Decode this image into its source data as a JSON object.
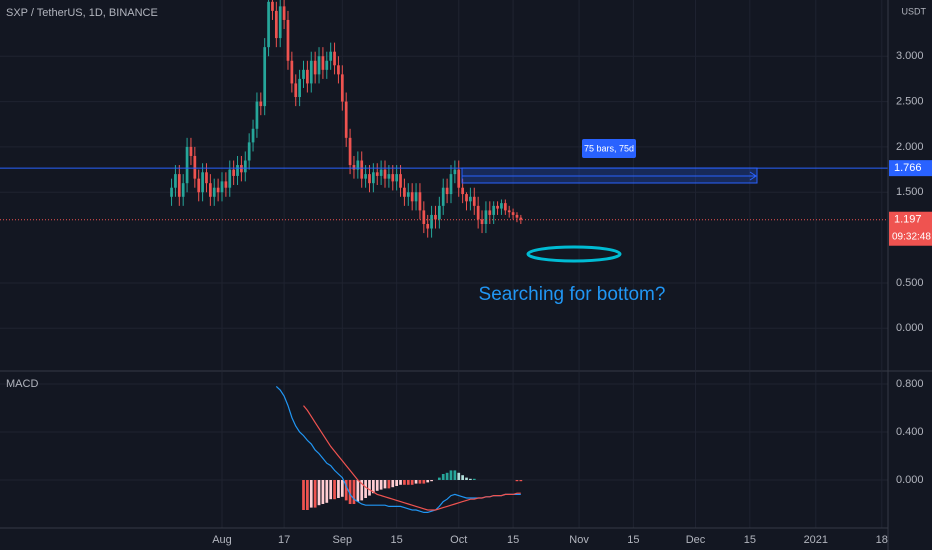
{
  "chart_data": [
    {
      "type": "candlestick",
      "title": "SXP / TetherUS, 1D, BINANCE",
      "currency": "USDT",
      "x": [
        -13,
        -12,
        -11,
        -10,
        -9,
        -8,
        -7,
        -6,
        -5,
        -4,
        -3,
        -2,
        -1,
        0,
        1,
        2,
        3,
        4,
        5,
        6,
        7,
        8,
        9,
        10,
        11,
        12,
        13,
        14,
        15,
        16,
        17,
        18,
        19,
        20,
        21,
        22,
        23,
        24,
        25,
        26,
        27,
        28,
        29,
        30,
        31,
        32,
        33,
        34,
        35,
        36,
        37,
        38,
        39,
        40,
        41,
        42,
        43,
        44,
        45,
        46,
        47,
        48,
        49,
        50,
        51,
        52,
        53,
        54,
        55,
        56,
        57,
        58,
        59,
        60,
        61,
        62,
        63,
        64,
        65,
        66,
        67,
        68,
        69,
        70,
        71,
        72,
        73,
        74,
        75,
        76,
        77
      ],
      "open": [
        1.45,
        1.55,
        1.7,
        1.45,
        1.6,
        2.0,
        1.9,
        1.65,
        1.5,
        1.72,
        1.6,
        1.45,
        1.55,
        1.5,
        1.62,
        1.55,
        1.75,
        1.68,
        1.8,
        1.72,
        1.85,
        2.05,
        2.2,
        2.5,
        2.45,
        3.1,
        3.6,
        3.5,
        3.2,
        3.55,
        3.4,
        2.95,
        2.7,
        2.55,
        2.75,
        2.85,
        2.7,
        2.95,
        2.8,
        3.0,
        2.85,
        2.95,
        3.05,
        2.9,
        2.8,
        2.5,
        2.1,
        1.8,
        1.75,
        1.85,
        1.65,
        1.7,
        1.6,
        1.72,
        1.68,
        1.75,
        1.65,
        1.7,
        1.62,
        1.7,
        1.55,
        1.45,
        1.5,
        1.4,
        1.5,
        1.3,
        1.15,
        1.1,
        1.25,
        1.2,
        1.35,
        1.55,
        1.48,
        1.7,
        1.75,
        1.55,
        1.48,
        1.4,
        1.45,
        1.35,
        1.2,
        1.15,
        1.3,
        1.25,
        1.35,
        1.32,
        1.38,
        1.3,
        1.28,
        1.25,
        1.22
      ],
      "high": [
        1.65,
        1.8,
        1.8,
        1.7,
        2.1,
        2.1,
        2.0,
        1.75,
        1.82,
        1.82,
        1.7,
        1.65,
        1.65,
        1.72,
        1.72,
        1.85,
        1.85,
        1.9,
        1.9,
        1.95,
        2.15,
        2.3,
        2.6,
        2.6,
        3.2,
        3.7,
        3.7,
        3.6,
        3.65,
        3.65,
        3.5,
        3.05,
        2.8,
        2.85,
        2.95,
        2.95,
        3.05,
        3.05,
        3.1,
        3.1,
        3.05,
        3.15,
        3.15,
        3.0,
        2.9,
        2.6,
        2.2,
        1.9,
        1.95,
        1.95,
        1.8,
        1.8,
        1.82,
        1.82,
        1.85,
        1.85,
        1.8,
        1.8,
        1.8,
        1.8,
        1.65,
        1.6,
        1.6,
        1.6,
        1.6,
        1.4,
        1.25,
        1.35,
        1.35,
        1.45,
        1.65,
        1.65,
        1.8,
        1.85,
        1.85,
        1.65,
        1.5,
        1.55,
        1.55,
        1.45,
        1.3,
        1.4,
        1.4,
        1.4,
        1.4,
        1.42,
        1.42,
        1.35,
        1.32,
        1.28,
        1.25
      ],
      "low": [
        1.35,
        1.45,
        1.35,
        1.35,
        1.5,
        1.8,
        1.55,
        1.4,
        1.4,
        1.5,
        1.35,
        1.35,
        1.4,
        1.4,
        1.45,
        1.45,
        1.58,
        1.58,
        1.62,
        1.62,
        1.75,
        1.95,
        2.1,
        2.35,
        2.35,
        3.0,
        3.4,
        3.1,
        3.1,
        3.3,
        2.85,
        2.6,
        2.45,
        2.45,
        2.65,
        2.6,
        2.6,
        2.7,
        2.7,
        2.75,
        2.75,
        2.85,
        2.8,
        2.7,
        2.4,
        2.0,
        1.7,
        1.65,
        1.65,
        1.55,
        1.55,
        1.5,
        1.5,
        1.58,
        1.58,
        1.55,
        1.55,
        1.52,
        1.52,
        1.45,
        1.35,
        1.35,
        1.3,
        1.3,
        1.2,
        1.05,
        1.0,
        1.0,
        1.1,
        1.1,
        1.25,
        1.38,
        1.38,
        1.6,
        1.45,
        1.38,
        1.3,
        1.3,
        1.25,
        1.1,
        1.05,
        1.05,
        1.15,
        1.15,
        1.25,
        1.25,
        1.25,
        1.22,
        1.2,
        1.17,
        1.15
      ],
      "close": [
        1.55,
        1.7,
        1.45,
        1.6,
        2.0,
        1.9,
        1.65,
        1.5,
        1.72,
        1.6,
        1.45,
        1.55,
        1.5,
        1.62,
        1.55,
        1.75,
        1.68,
        1.8,
        1.72,
        1.85,
        2.05,
        2.2,
        2.5,
        2.45,
        3.1,
        3.6,
        3.5,
        3.2,
        3.55,
        3.4,
        2.95,
        2.7,
        2.55,
        2.75,
        2.85,
        2.7,
        2.95,
        2.8,
        3.0,
        2.85,
        2.95,
        3.05,
        2.9,
        2.8,
        2.5,
        2.1,
        1.8,
        1.75,
        1.85,
        1.65,
        1.7,
        1.6,
        1.72,
        1.68,
        1.75,
        1.65,
        1.7,
        1.62,
        1.7,
        1.55,
        1.45,
        1.5,
        1.4,
        1.5,
        1.3,
        1.15,
        1.1,
        1.25,
        1.2,
        1.35,
        1.55,
        1.48,
        1.7,
        1.75,
        1.55,
        1.48,
        1.4,
        1.45,
        1.35,
        1.2,
        1.15,
        1.3,
        1.25,
        1.35,
        1.32,
        1.38,
        1.3,
        1.28,
        1.25,
        1.22,
        1.197
      ],
      "up_color": "#26a69a",
      "down_color": "#ef5350",
      "xlim": [
        -57.2,
        171.6
      ],
      "ylim": [
        -0.46,
        3.62
      ],
      "yticks": [
        {
          "value": 0,
          "label": "0.000"
        },
        {
          "value": 0.5,
          "label": "0.500"
        },
        {
          "value": 1.5,
          "label": "1.500"
        },
        {
          "value": 2,
          "label": "2.000"
        },
        {
          "value": 2.5,
          "label": "2.500"
        },
        {
          "value": 3,
          "label": "3.000"
        }
      ],
      "hline": 1.766,
      "hline_color": "#2962ff",
      "countdown": "09:32:48",
      "measure_label": "75 bars, 75d",
      "annotation": "Searching for bottom?",
      "grid": true
    },
    {
      "type": "macd",
      "title": "MACD",
      "x": [
        -13,
        -12,
        -11,
        -10,
        -9,
        -8,
        -7,
        -6,
        -5,
        -4,
        -3,
        -2,
        -1,
        0,
        1,
        2,
        3,
        4,
        5,
        6,
        7,
        8,
        9,
        10,
        11,
        12,
        13,
        14,
        15,
        16,
        17,
        18,
        19,
        20,
        21,
        22,
        23,
        24,
        25,
        26,
        27,
        28,
        29,
        30,
        31,
        32,
        33,
        34,
        35,
        36,
        37,
        38,
        39,
        40,
        41,
        42,
        43,
        44,
        45,
        46,
        47,
        48,
        49,
        50,
        51,
        52,
        53,
        54,
        55,
        56,
        57,
        58,
        59,
        60,
        61,
        62,
        63,
        64,
        65,
        66,
        67,
        68,
        69,
        70,
        71,
        72,
        73,
        74,
        75,
        76,
        77
      ],
      "macd": [
        null,
        null,
        null,
        null,
        null,
        null,
        null,
        null,
        null,
        null,
        null,
        null,
        null,
        null,
        null,
        null,
        null,
        null,
        null,
        null,
        null,
        null,
        null,
        null,
        null,
        null,
        null,
        0.78,
        0.75,
        0.7,
        0.62,
        0.52,
        0.45,
        0.4,
        0.37,
        0.33,
        0.3,
        0.25,
        0.22,
        0.18,
        0.14,
        0.12,
        0.08,
        0.05,
        0.02,
        -0.05,
        -0.12,
        -0.16,
        -0.18,
        -0.2,
        -0.21,
        -0.21,
        -0.21,
        -0.21,
        -0.21,
        -0.21,
        -0.22,
        -0.22,
        -0.22,
        -0.22,
        -0.23,
        -0.24,
        -0.25,
        -0.25,
        -0.26,
        -0.27,
        -0.27,
        -0.26,
        -0.25,
        -0.22,
        -0.18,
        -0.16,
        -0.13,
        -0.12,
        -0.13,
        -0.14,
        -0.15,
        -0.15,
        -0.15,
        -0.15,
        -0.15,
        -0.14,
        -0.14,
        -0.13,
        -0.13,
        -0.13,
        -0.12,
        -0.12,
        -0.12,
        -0.12,
        -0.12
      ],
      "signal": [
        null,
        null,
        null,
        null,
        null,
        null,
        null,
        null,
        null,
        null,
        null,
        null,
        null,
        null,
        null,
        null,
        null,
        null,
        null,
        null,
        null,
        null,
        null,
        null,
        null,
        null,
        null,
        null,
        null,
        null,
        null,
        null,
        null,
        null,
        0.62,
        0.58,
        0.53,
        0.48,
        0.43,
        0.38,
        0.33,
        0.28,
        0.24,
        0.2,
        0.16,
        0.12,
        0.08,
        0.04,
        0.0,
        -0.03,
        -0.06,
        -0.08,
        -0.1,
        -0.12,
        -0.13,
        -0.14,
        -0.15,
        -0.16,
        -0.17,
        -0.18,
        -0.19,
        -0.2,
        -0.21,
        -0.22,
        -0.23,
        -0.24,
        -0.25,
        -0.25,
        -0.25,
        -0.24,
        -0.23,
        -0.22,
        -0.21,
        -0.2,
        -0.19,
        -0.18,
        -0.17,
        -0.16,
        -0.16,
        -0.15,
        -0.15,
        -0.14,
        -0.14,
        -0.13,
        -0.13,
        -0.13,
        -0.12,
        -0.12,
        -0.12,
        -0.11,
        -0.11
      ],
      "histogram": [
        null,
        null,
        null,
        null,
        null,
        null,
        null,
        null,
        null,
        null,
        null,
        null,
        null,
        null,
        null,
        null,
        null,
        null,
        null,
        null,
        null,
        null,
        null,
        null,
        null,
        null,
        null,
        null,
        null,
        null,
        null,
        null,
        null,
        null,
        -0.25,
        -0.25,
        -0.23,
        -0.23,
        -0.21,
        -0.2,
        -0.19,
        -0.16,
        -0.16,
        -0.15,
        -0.14,
        -0.17,
        -0.2,
        -0.2,
        -0.18,
        -0.17,
        -0.15,
        -0.13,
        -0.11,
        -0.09,
        -0.08,
        -0.07,
        -0.07,
        -0.06,
        -0.05,
        -0.04,
        -0.04,
        -0.04,
        -0.04,
        -0.03,
        -0.03,
        -0.03,
        -0.02,
        -0.01,
        0.0,
        0.02,
        0.05,
        0.06,
        0.08,
        0.08,
        0.06,
        0.04,
        0.02,
        0.01,
        0.01,
        0.0,
        0.0,
        0.0,
        0.0,
        0.0,
        0.0,
        0.0,
        0.0,
        0.0,
        0.0,
        -0.01,
        -0.01
      ],
      "macd_color": "#2196f3",
      "signal_color": "#ef5350",
      "hist_colors": [
        "#ef5350",
        "#ffcdd2",
        "#26a69a",
        "#b2dfdb"
      ],
      "xlim": [
        -57.2,
        171.6
      ],
      "ylim": [
        -0.4,
        0.9
      ],
      "yticks": [
        {
          "value": 0,
          "label": "0.000"
        },
        {
          "value": 0.4,
          "label": "0.400"
        },
        {
          "value": 0.8,
          "label": "0.800"
        }
      ],
      "xticks": [
        {
          "value": 0,
          "label": "Aug"
        },
        {
          "value": 16,
          "label": "17"
        },
        {
          "value": 31,
          "label": "Sep"
        },
        {
          "value": 45,
          "label": "15"
        },
        {
          "value": 61,
          "label": "Oct"
        },
        {
          "value": 75,
          "label": "15"
        },
        {
          "value": 92,
          "label": "Nov"
        },
        {
          "value": 106,
          "label": "15"
        },
        {
          "value": 122,
          "label": "Dec"
        },
        {
          "value": 136,
          "label": "15"
        },
        {
          "value": 153,
          "label": "2021"
        },
        {
          "value": 170,
          "label": "18"
        }
      ],
      "grid": true
    }
  ]
}
